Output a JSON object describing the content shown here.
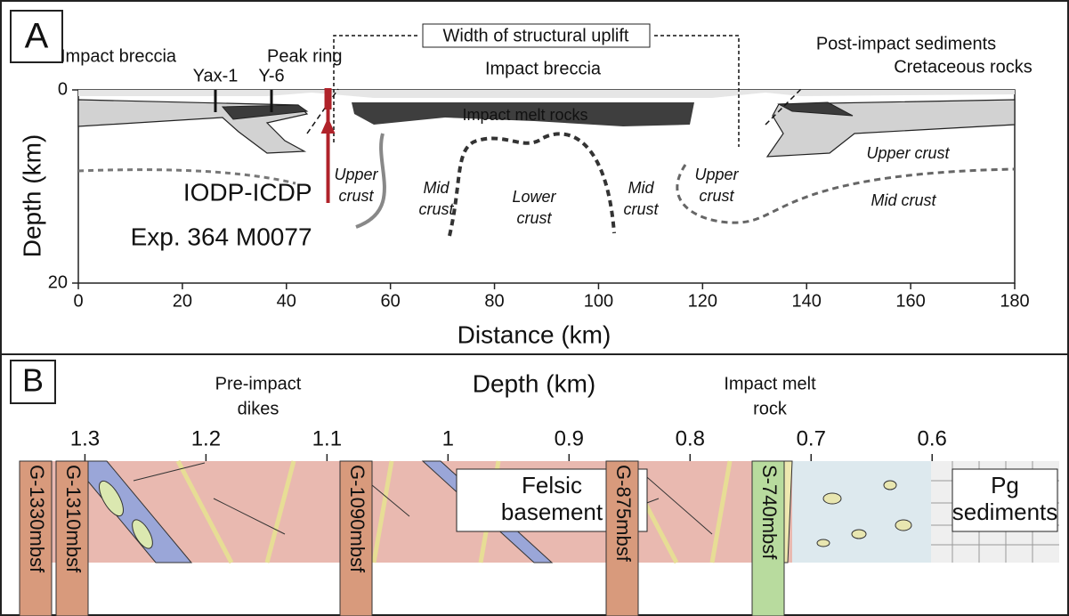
{
  "panel_a": {
    "label": "A",
    "xlabel": "Distance (km)",
    "ylabel": "Depth (km)",
    "xlim": [
      0,
      180
    ],
    "xticks": [
      0,
      20,
      40,
      60,
      80,
      100,
      120,
      140,
      160,
      180
    ],
    "ylim": [
      0,
      20
    ],
    "yticks": [
      0,
      20
    ],
    "bracket_label": "Width of structural uplift",
    "annotations": [
      "Impact breccia",
      "Peak ring",
      "Yax-1",
      "Y-6",
      "Post-impact sediments",
      "Cretaceous rocks",
      "Impact breccia",
      "Impact melt rocks",
      "Upper crust",
      "Mid crust"
    ],
    "crust_labels": [
      [
        "Upper",
        "crust"
      ],
      [
        "Mid",
        "crust"
      ],
      [
        "Lower",
        "crust"
      ],
      [
        "Mid",
        "crust"
      ],
      [
        "Upper",
        "crust"
      ]
    ],
    "core_label": [
      "IODP-ICDP",
      "Exp. 364 M0077"
    ],
    "core_distance": 48
  },
  "panel_b": {
    "label": "B",
    "xlabel": "Depth (km)",
    "xlim": [
      1.354,
      0.495
    ],
    "xticks": [
      1.3,
      1.2,
      1.1,
      1.0,
      0.9,
      0.8,
      0.7,
      0.6
    ],
    "headers": [
      [
        "Pre-impact",
        "dikes"
      ],
      [
        "Impact melt",
        "rock"
      ]
    ],
    "units": [
      [
        "Felsic",
        "basement"
      ],
      [
        "Pg",
        "sediments"
      ]
    ],
    "samples": [
      "G-1330mbsf",
      "G-1310mbsf",
      "G-1090mbsf",
      "G-875mbsf",
      "S-740mbsf"
    ]
  }
}
